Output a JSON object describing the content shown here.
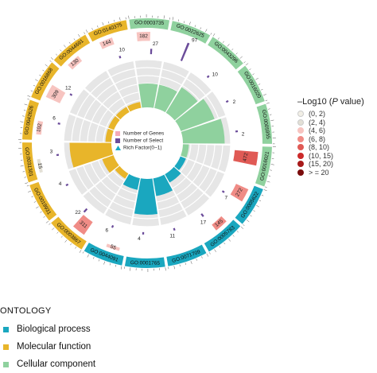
{
  "chart_data": {
    "type": "circular GO enrichment",
    "center_legend": [
      {
        "label": "Number of Genes",
        "color": "#f4a9b8",
        "shape": "square"
      },
      {
        "label": "Number of Select",
        "color": "#6b4c9a",
        "shape": "square"
      },
      {
        "label": "Rich Factor(0~1)",
        "color": "#17a8c4",
        "shape": "triangle"
      }
    ],
    "pvalue_legend": {
      "title_prefix": "–Log10 (",
      "title_italic": "P",
      "title_suffix": " value)",
      "items": [
        {
          "label": "(0, 2)",
          "color": "#f2efe6"
        },
        {
          "label": "(2, 4)",
          "color": "#e3e0d6"
        },
        {
          "label": "(4, 6)",
          "color": "#f7c4c0"
        },
        {
          "label": "(6, 8)",
          "color": "#f08c86"
        },
        {
          "label": "(8, 10)",
          "color": "#e05a55"
        },
        {
          "label": "(10, 15)",
          "color": "#cc2a2a"
        },
        {
          "label": "(15, 20)",
          "color": "#a81a1a"
        },
        {
          "label": "> = 20",
          "color": "#7a0c0c"
        }
      ]
    },
    "ontology_legend": {
      "title": "ONTOLOGY",
      "items": [
        {
          "label": "Biological process",
          "color": "#1aa7bf"
        },
        {
          "label": "Molecular function",
          "color": "#e8b52a"
        },
        {
          "label": "Cellular component",
          "color": "#8fd19e"
        }
      ]
    },
    "terms": [
      {
        "id": "GO:0003735",
        "ontology": "Cellular component",
        "genes": 182,
        "select": 27,
        "rich": 0.2,
        "pcat": 2
      },
      {
        "id": "GO:0022625",
        "ontology": "Cellular component",
        "genes": null,
        "select": 97,
        "rich": 0.2,
        "pcat": 2
      },
      {
        "id": "GO:0043296",
        "ontology": "Cellular component",
        "genes": null,
        "select": 10,
        "rich": 0.25,
        "pcat": 1
      },
      {
        "id": "GO:0016020",
        "ontology": "Cellular component",
        "genes": null,
        "select": 2,
        "rich": 0.3,
        "pcat": 1
      },
      {
        "id": "GO:0005955",
        "ontology": "Cellular component",
        "genes": null,
        "select": 2,
        "rich": 0.35,
        "pcat": 1
      },
      {
        "id": "GO:0016021",
        "ontology": "Cellular component",
        "genes": 472,
        "select": null,
        "rich": 0.05,
        "pcat": 4
      },
      {
        "id": "GO:0005622",
        "ontology": "Biological process",
        "genes": 272,
        "select": 7,
        "rich": 0.05,
        "pcat": 3
      },
      {
        "id": "GO:0005783",
        "ontology": "Biological process",
        "genes": 145,
        "select": 17,
        "rich": 0.08,
        "pcat": 3
      },
      {
        "id": "GO:0071709",
        "ontology": "Biological process",
        "genes": null,
        "select": 11,
        "rich": 0.15,
        "pcat": 1
      },
      {
        "id": "GO:0001765",
        "ontology": "Biological process",
        "genes": null,
        "select": 4,
        "rich": 0.3,
        "pcat": 1
      },
      {
        "id": "GO:0044091",
        "ontology": "Biological process",
        "genes": 55,
        "select": 6,
        "rich": 0.1,
        "pcat": 2
      },
      {
        "id": "GO:0003867",
        "ontology": "Molecular function",
        "genes": 311,
        "select": 22,
        "rich": 0.05,
        "pcat": 3
      },
      {
        "id": "GO:0019931",
        "ontology": "Molecular function",
        "genes": null,
        "select": 4,
        "rich": 0.1,
        "pcat": 1
      },
      {
        "id": "GO:0031301",
        "ontology": "Molecular function",
        "genes": 15,
        "select": 3,
        "rich": 0.35,
        "pcat": 1
      },
      {
        "id": "GO:0042626",
        "ontology": "Molecular function",
        "genes": 102,
        "select": 6,
        "rich": 0.05,
        "pcat": 2
      },
      {
        "id": "GO:0016868",
        "ontology": "Molecular function",
        "genes": 309,
        "select": 12,
        "rich": 0.05,
        "pcat": 2
      },
      {
        "id": "GO:0044691",
        "ontology": "Molecular function",
        "genes": 130,
        "select": null,
        "rich": 0.05,
        "pcat": 2
      },
      {
        "id": "GO:0140375",
        "ontology": "Molecular function",
        "genes": 144,
        "select": 10,
        "rich": 0.05,
        "pcat": 2
      }
    ]
  }
}
